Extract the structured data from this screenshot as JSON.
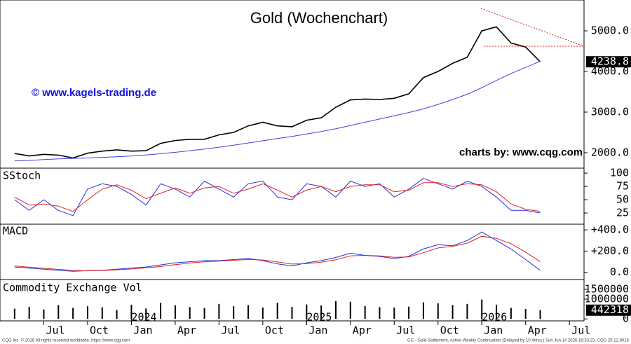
{
  "chart_data": [
    {
      "type": "line",
      "title": "Gold (Wochenchart)",
      "annotations": [
        "© www.kagels-trading.de",
        "charts by: www.cqg.com"
      ],
      "footer": [
        "CQG Inc. © 2026 All rights reserved worldwide. https://www.cqg.com",
        "GC - Gold-Settlement, Active Weekly Continuation (Delayed by 10 mins) | Sun Jun 14 2026 16:33:23, CQG 25.12.8015"
      ],
      "x": [
        "2023-05",
        "2023-06",
        "2023-07",
        "2023-08",
        "2023-09",
        "2023-10",
        "2023-11",
        "2023-12",
        "2024-01",
        "2024-02",
        "2024-03",
        "2024-04",
        "2024-05",
        "2024-06",
        "2024-07",
        "2024-08",
        "2024-09",
        "2024-10",
        "2024-11",
        "2024-12",
        "2025-01",
        "2025-02",
        "2025-03",
        "2025-04",
        "2025-05",
        "2025-06",
        "2025-07",
        "2025-08",
        "2025-09",
        "2025-10",
        "2025-11",
        "2025-12",
        "2026-01",
        "2026-02",
        "2026-03",
        "2026-04",
        "2026-05"
      ],
      "xlim": [
        "2023-04",
        "2026-08"
      ],
      "xticks": [
        {
          "value": "2023-07",
          "label": "Jul"
        },
        {
          "value": "2023-10",
          "label": "Oct"
        },
        {
          "value": "2024-01",
          "label": "Jan"
        },
        {
          "value": "2024-04",
          "label": "Apr"
        },
        {
          "value": "2024-07",
          "label": "Jul"
        },
        {
          "value": "2024-10",
          "label": "Oct"
        },
        {
          "value": "2025-01",
          "label": "Jan"
        },
        {
          "value": "2025-04",
          "label": "Apr"
        },
        {
          "value": "2025-07",
          "label": "Jul"
        },
        {
          "value": "2025-10",
          "label": "Oct"
        },
        {
          "value": "2026-01",
          "label": "Jan"
        },
        {
          "value": "2026-04",
          "label": "Apr"
        },
        {
          "value": "2026-07",
          "label": "Jul"
        }
      ],
      "xyears": [
        {
          "value": "2024-01",
          "label": "2024"
        },
        {
          "value": "2025-01",
          "label": "2025"
        },
        {
          "value": "2026-01",
          "label": "2026"
        }
      ],
      "ylim": [
        1620,
        5760
      ],
      "yticks": [
        {
          "value": 2000,
          "label": "2000.0"
        },
        {
          "value": 3000,
          "label": "3000.0"
        },
        {
          "value": 4000,
          "label": "4000.0"
        },
        {
          "value": 5000,
          "label": "5000.0"
        }
      ],
      "series": [
        {
          "color": "#000000",
          "values": [
            1980,
            1920,
            1960,
            1940,
            1870,
            1990,
            2040,
            2070,
            2040,
            2050,
            2230,
            2300,
            2330,
            2330,
            2440,
            2500,
            2660,
            2750,
            2660,
            2640,
            2800,
            2860,
            3120,
            3300,
            3320,
            3310,
            3340,
            3450,
            3850,
            4000,
            4200,
            4350,
            5000,
            5100,
            4700,
            4600,
            4238.8
          ]
        },
        {
          "color": "#4040e0",
          "values": [
            1800,
            1810,
            1830,
            1850,
            1860,
            1870,
            1885,
            1900,
            1920,
            1945,
            1975,
            2010,
            2050,
            2090,
            2135,
            2185,
            2240,
            2295,
            2350,
            2400,
            2460,
            2520,
            2590,
            2670,
            2750,
            2830,
            2910,
            2990,
            3080,
            3190,
            3310,
            3440,
            3600,
            3780,
            3950,
            4100,
            4250
          ]
        }
      ]
    },
    {
      "type": "line",
      "title": "SStoch",
      "ylim": [
        4,
        108
      ],
      "yticks": [
        25,
        50,
        75,
        100
      ],
      "series": [
        {
          "color": "#2030e0",
          "values": [
            50,
            30,
            50,
            30,
            20,
            70,
            80,
            75,
            60,
            40,
            80,
            70,
            55,
            85,
            70,
            55,
            80,
            85,
            55,
            50,
            80,
            75,
            55,
            85,
            75,
            80,
            55,
            70,
            90,
            80,
            70,
            85,
            75,
            55,
            30,
            30,
            25
          ]
        },
        {
          "color": "#e02020",
          "values": [
            55,
            40,
            42,
            38,
            28,
            50,
            70,
            78,
            68,
            52,
            62,
            72,
            62,
            72,
            75,
            62,
            70,
            80,
            68,
            55,
            68,
            75,
            65,
            75,
            78,
            78,
            65,
            68,
            82,
            82,
            75,
            80,
            78,
            65,
            42,
            32,
            28
          ]
        }
      ]
    },
    {
      "type": "line",
      "title": "MACD",
      "ylim": [
        -68,
        447
      ],
      "yticks": [
        {
          "value": 0,
          "label": "0.0"
        },
        {
          "value": 200,
          "label": "+200.0"
        },
        {
          "value": 400,
          "label": "+400.0"
        }
      ],
      "series": [
        {
          "color": "#2030e0",
          "values": [
            50,
            40,
            30,
            20,
            10,
            15,
            20,
            30,
            40,
            50,
            70,
            90,
            100,
            110,
            110,
            120,
            130,
            110,
            80,
            60,
            90,
            110,
            140,
            180,
            160,
            150,
            130,
            150,
            220,
            260,
            250,
            300,
            380,
            300,
            220,
            120,
            20
          ]
        },
        {
          "color": "#e02020",
          "values": [
            60,
            48,
            38,
            28,
            18,
            14,
            17,
            24,
            32,
            42,
            55,
            72,
            88,
            100,
            106,
            113,
            122,
            116,
            98,
            78,
            82,
            95,
            118,
            155,
            160,
            155,
            142,
            145,
            185,
            230,
            245,
            275,
            340,
            320,
            270,
            190,
            100
          ]
        }
      ]
    },
    {
      "type": "bar",
      "title": "Commodity Exchange Vol",
      "ylim": [
        -100000,
        1960000
      ],
      "yticks": [
        0,
        1000000,
        1500000
      ],
      "color": "#000000",
      "values": [
        520000,
        610000,
        480000,
        700000,
        560000,
        640000,
        590000,
        450000,
        720000,
        530000,
        810000,
        690000,
        600000,
        550000,
        760000,
        640000,
        700000,
        580000,
        820000,
        610000,
        730000,
        680000,
        900000,
        870000,
        650000,
        600000,
        580000,
        620000,
        840000,
        790000,
        700000,
        760000,
        980000,
        720000,
        560000,
        500000,
        442318
      ]
    }
  ]
}
